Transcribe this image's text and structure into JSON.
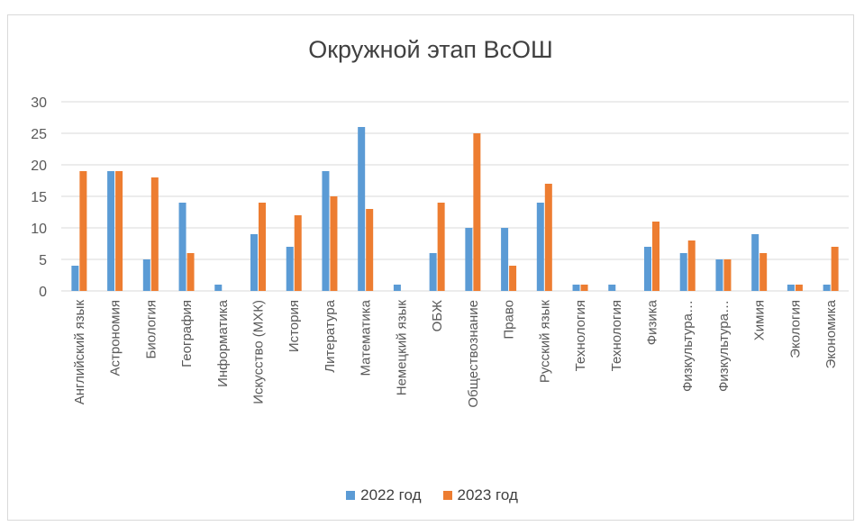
{
  "colors": {
    "series_2022": "#5b9bd5",
    "series_2023": "#ed7d31",
    "grid": "#d9d9d9",
    "text": "#595959"
  },
  "chart_data": {
    "type": "bar",
    "title": "Окружной этап ВсОШ",
    "xlabel": "",
    "ylabel": "",
    "ylim": [
      0,
      30
    ],
    "yticks": [
      0,
      5,
      10,
      15,
      20,
      25,
      30
    ],
    "grid": true,
    "legend_position": "bottom",
    "categories": [
      "Английский язык",
      "Астрономия",
      "Биология",
      "География",
      "Информатика",
      "Искусство (МХК)",
      "История",
      "Литература",
      "Математика",
      "Немецкий язык",
      "ОБЖ",
      "Обществознание",
      "Право",
      "Русский язык",
      "Технология",
      "Технология",
      "Физика",
      "Физкультура…",
      "Физкультура…",
      "Химия",
      "Экология",
      "Экономика"
    ],
    "series": [
      {
        "name": "2022 год",
        "values": [
          4,
          19,
          5,
          14,
          1,
          9,
          7,
          19,
          26,
          1,
          6,
          10,
          10,
          14,
          1,
          1,
          7,
          6,
          5,
          9,
          1,
          1
        ]
      },
      {
        "name": "2023 год",
        "values": [
          19,
          19,
          18,
          6,
          0,
          14,
          12,
          15,
          13,
          0,
          14,
          25,
          4,
          17,
          1,
          0,
          11,
          8,
          5,
          6,
          1,
          7
        ]
      }
    ]
  }
}
